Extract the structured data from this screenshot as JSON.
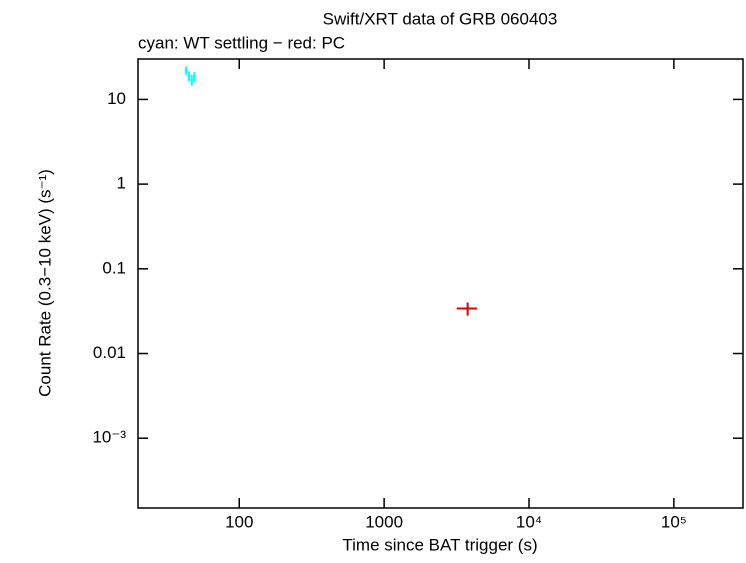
{
  "chart_data": {
    "type": "scatter",
    "title": "Swift/XRT data of GRB 060403",
    "subtitle": "cyan: WT settling − red: PC",
    "x_label": "Time since BAT trigger (s)",
    "y_label": "Count Rate (0.3−10 keV) (s⁻¹)",
    "log_x": true,
    "log_y": true,
    "xlim": [
      20,
      300000
    ],
    "ylim": [
      0.00015,
      30
    ],
    "xticks": [
      100,
      1000,
      {
        "value": 10000,
        "label": "10⁴"
      },
      {
        "value": 100000,
        "label": "10⁵"
      }
    ],
    "yticks": [
      {
        "value": 0.001,
        "label": "10⁻³"
      },
      0.01,
      0.1,
      1,
      10
    ],
    "series": [
      {
        "name": "WT settling",
        "color": "#00ffff",
        "x": [
          43,
          45,
          47,
          49
        ],
        "xerr": [
          1,
          1,
          1,
          1
        ],
        "y": [
          22,
          19,
          17,
          18.5
        ],
        "yerr": [
          2.5,
          2.5,
          2.5,
          2.5
        ]
      },
      {
        "name": "PC",
        "color": "#e00000",
        "x": [
          3770
        ],
        "xerr": [
          600
        ],
        "y": [
          0.034
        ],
        "yerr": [
          0.006
        ]
      }
    ]
  }
}
